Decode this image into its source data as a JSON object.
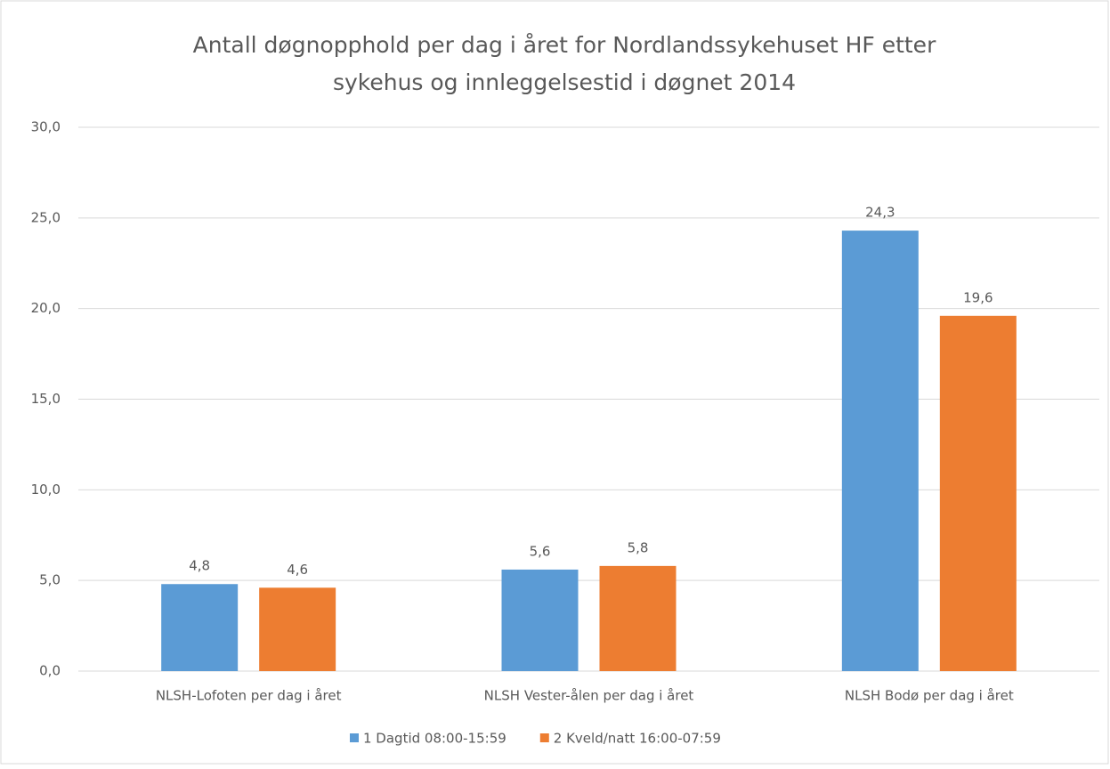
{
  "chart_data": {
    "type": "bar",
    "title": [
      "Antall døgnopphold per dag i året for Nordlandssykehuset  HF etter",
      "sykehus og innleggelsestid i døgnet 2014"
    ],
    "categories": [
      "NLSH-Lofoten per dag i året",
      "NLSH Vester-ålen per dag i året",
      "NLSH Bodø per dag i året"
    ],
    "series": [
      {
        "name": "1 Dagtid 08:00-15:59",
        "color": "#5b9bd5",
        "values": [
          4.8,
          5.6,
          24.3
        ],
        "value_labels": [
          "4,8",
          "5,6",
          "24,3"
        ]
      },
      {
        "name": "2 Kveld/natt 16:00-07:59",
        "color": "#ed7d31",
        "values": [
          4.6,
          5.8,
          19.6
        ],
        "value_labels": [
          "4,6",
          "5,8",
          "19,6"
        ]
      }
    ],
    "ylim": [
      0,
      30
    ],
    "yticks": [
      {
        "value": 0,
        "label": "0,0"
      },
      {
        "value": 5,
        "label": "5,0"
      },
      {
        "value": 10,
        "label": "10,0"
      },
      {
        "value": 15,
        "label": "15,0"
      },
      {
        "value": 20,
        "label": "20,0"
      },
      {
        "value": 25,
        "label": "25,0"
      },
      {
        "value": 30,
        "label": "30,0"
      }
    ],
    "grid": true,
    "legend": "bottom"
  }
}
